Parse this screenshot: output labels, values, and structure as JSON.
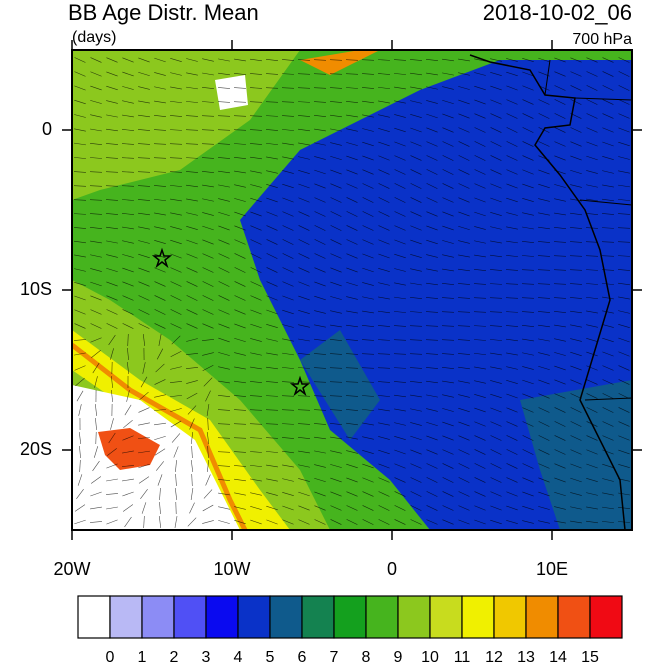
{
  "chart_data": {
    "type": "map",
    "title": "BB Age Distr. Mean",
    "subtitle": "(days)",
    "right_title": "2018-10-02_06",
    "right_subtitle": "700 hPa",
    "xlim": [
      -20,
      15
    ],
    "ylim": [
      -25,
      5
    ],
    "xticks": [
      {
        "value": -20,
        "label": "20W"
      },
      {
        "value": -10,
        "label": "10W"
      },
      0,
      {
        "value": 10,
        "label": "10E"
      }
    ],
    "yticks": [
      {
        "value": 0,
        "label": "0"
      },
      {
        "value": -10,
        "label": "10S"
      },
      {
        "value": -20,
        "label": "20S"
      }
    ],
    "colorbar": {
      "levels": [
        0,
        1,
        2,
        3,
        4,
        5,
        6,
        7,
        8,
        9,
        10,
        11,
        12,
        13,
        14,
        15
      ],
      "colors": [
        "#ffffff",
        "#b9b9f5",
        "#8c8cf5",
        "#5050f5",
        "#0a0af0",
        "#0a32c8",
        "#0f5a8c",
        "#148250",
        "#14a01e",
        "#46b41e",
        "#8cc81e",
        "#c8dc1e",
        "#f0f000",
        "#f0c800",
        "#f08c00",
        "#f05014",
        "#f00a14"
      ]
    }
  }
}
